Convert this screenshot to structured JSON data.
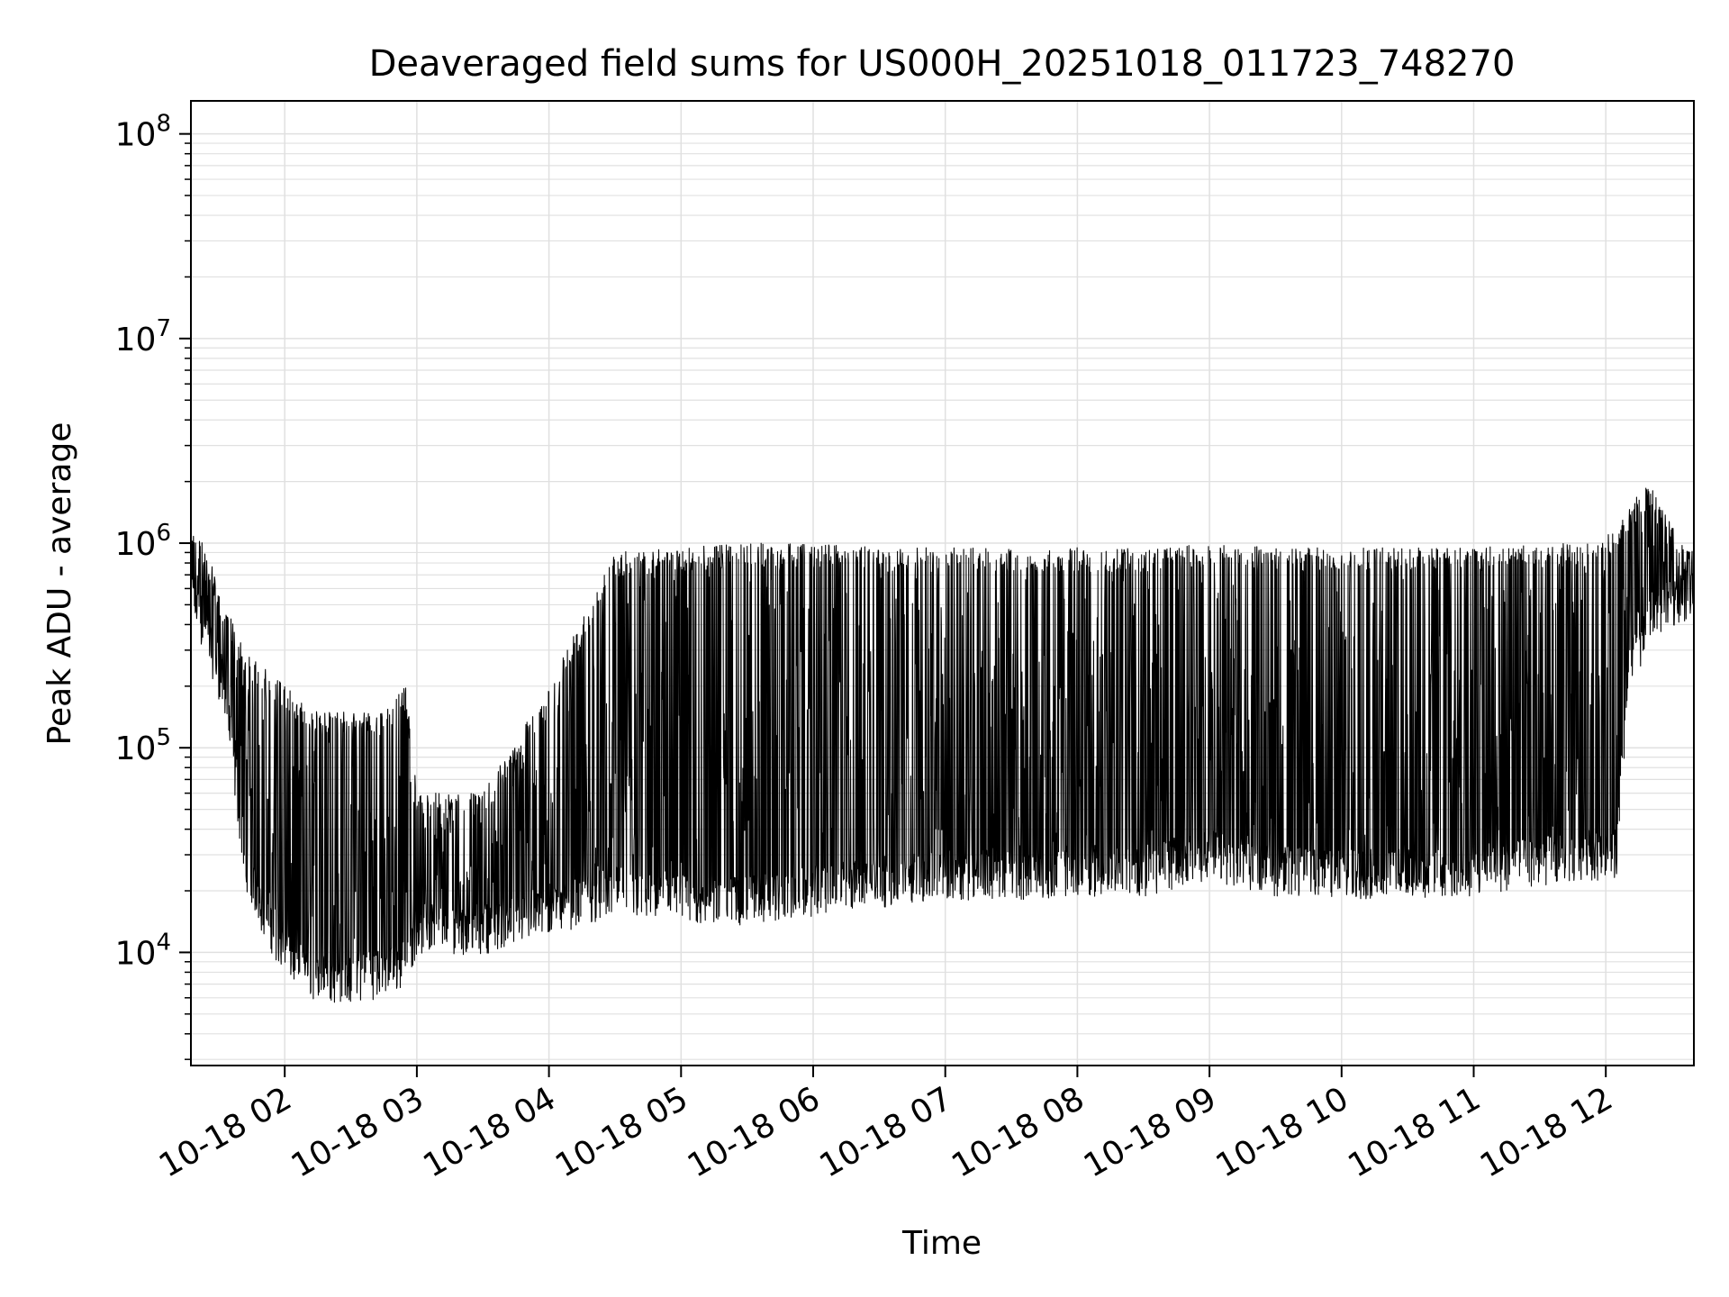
{
  "chart_data": {
    "type": "line",
    "title": "Deaveraged field sums for US000H_20251018_011723_748270",
    "xlabel": "Time",
    "ylabel": "Peak ADU - average",
    "xlim": [
      "2025-10-18T01:17:23",
      "2025-10-18T12:40:00"
    ],
    "ylim": [
      2800,
      145000000
    ],
    "yscale": "log",
    "grid": true,
    "line_color": "#000000",
    "grid_color": "#e0e0e0",
    "x_ticks": [
      {
        "value": "2025-10-18T02:00",
        "label": "10-18 02"
      },
      {
        "value": "2025-10-18T03:00",
        "label": "10-18 03"
      },
      {
        "value": "2025-10-18T04:00",
        "label": "10-18 04"
      },
      {
        "value": "2025-10-18T05:00",
        "label": "10-18 05"
      },
      {
        "value": "2025-10-18T06:00",
        "label": "10-18 06"
      },
      {
        "value": "2025-10-18T07:00",
        "label": "10-18 07"
      },
      {
        "value": "2025-10-18T08:00",
        "label": "10-18 08"
      },
      {
        "value": "2025-10-18T09:00",
        "label": "10-18 09"
      },
      {
        "value": "2025-10-18T10:00",
        "label": "10-18 10"
      },
      {
        "value": "2025-10-18T11:00",
        "label": "10-18 11"
      },
      {
        "value": "2025-10-18T12:00",
        "label": "10-18 12"
      }
    ],
    "y_ticks": [
      {
        "value": 10000,
        "base": "10",
        "exp": "4"
      },
      {
        "value": 100000,
        "base": "10",
        "exp": "5"
      },
      {
        "value": 1000000,
        "base": "10",
        "exp": "6"
      },
      {
        "value": 10000000,
        "base": "10",
        "exp": "7"
      },
      {
        "value": 100000000,
        "base": "10",
        "exp": "8"
      }
    ],
    "series": [
      {
        "x": [
          "2025-10-18T01:17:23",
          "2025-10-18T01:24",
          "2025-10-18T01:33",
          "2025-10-18T01:42",
          "2025-10-18T01:50",
          "2025-10-18T02:00",
          "2025-10-18T02:15",
          "2025-10-18T02:30",
          "2025-10-18T02:45",
          "2025-10-18T02:55",
          "2025-10-18T03:00",
          "2025-10-18T03:30",
          "2025-10-18T04:00",
          "2025-10-18T04:30",
          "2025-10-18T05:00",
          "2025-10-18T05:30",
          "2025-10-18T06:00",
          "2025-10-18T06:30",
          "2025-10-18T07:00",
          "2025-10-18T07:30",
          "2025-10-18T08:00",
          "2025-10-18T08:30",
          "2025-10-18T09:00",
          "2025-10-18T09:30",
          "2025-10-18T10:00",
          "2025-10-18T10:30",
          "2025-10-18T11:00",
          "2025-10-18T11:30",
          "2025-10-18T11:55",
          "2025-10-18T12:05",
          "2025-10-18T12:10",
          "2025-10-18T12:20",
          "2025-10-18T12:30",
          "2025-10-18T12:40"
        ],
        "low": [
          550000,
          380000,
          180000,
          28000,
          16000,
          10000,
          7500,
          7500,
          8000,
          9000,
          13000,
          13000,
          16000,
          20000,
          18000,
          18000,
          20000,
          22000,
          24000,
          24000,
          25000,
          25000,
          30000,
          25000,
          24000,
          24000,
          25000,
          28000,
          30000,
          30000,
          220000,
          450000,
          520000,
          580000
        ],
        "high": [
          1200000,
          950000,
          500000,
          300000,
          250000,
          200000,
          150000,
          150000,
          150000,
          200000,
          60000,
          60000,
          200000,
          900000,
          950000,
          1000000,
          1000000,
          950000,
          950000,
          950000,
          950000,
          950000,
          1000000,
          950000,
          950000,
          950000,
          950000,
          1000000,
          1000000,
          1200000,
          1500000,
          2000000,
          1200000,
          950000
        ]
      }
    ]
  }
}
